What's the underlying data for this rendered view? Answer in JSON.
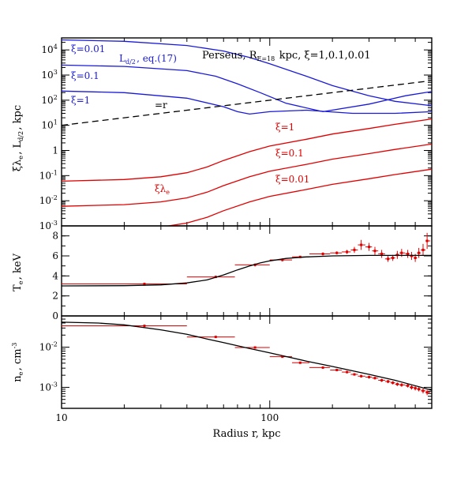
{
  "chart_data": [
    {
      "type": "line",
      "panel": "top",
      "title": "Perseus, R_E=18 kpc, ξ=1,0.1,0.01",
      "ylabel": "ξλ_e, L_d/2, kpc",
      "xscale": "log",
      "yscale": "log",
      "xlim": [
        10,
        600
      ],
      "ylim": [
        0.001,
        30000
      ],
      "ytick_labels": [
        "10^-3",
        "10^-2",
        "10^-1",
        "1",
        "10^1",
        "10^2",
        "10^3",
        "10^4"
      ],
      "series": [
        {
          "name": "ξ=0.01",
          "group": "L_d/2, eq.(17)",
          "color": "#1a1ad8",
          "x": [
            10,
            20,
            40,
            60,
            80,
            100,
            150,
            200,
            300,
            400,
            600
          ],
          "y": [
            25000,
            22000,
            15000,
            9000,
            5000,
            2800,
            900,
            380,
            150,
            90,
            60
          ]
        },
        {
          "name": "ξ=0.1",
          "group": "L_d/2, eq.(17)",
          "color": "#1a1ad8",
          "x": [
            10,
            20,
            40,
            55,
            70,
            90,
            120,
            180,
            300,
            450,
            600
          ],
          "y": [
            2500,
            2200,
            1500,
            900,
            450,
            200,
            75,
            35,
            70,
            150,
            220
          ]
        },
        {
          "name": "ξ=1",
          "group": "L_d/2, eq.(17)",
          "color": "#1a1ad8",
          "x": [
            10,
            20,
            40,
            60,
            70,
            80,
            100,
            150,
            250,
            400,
            600
          ],
          "y": [
            230,
            200,
            120,
            55,
            35,
            28,
            35,
            40,
            30,
            30,
            35
          ]
        },
        {
          "name": "=r",
          "color": "#000000",
          "dashed": true,
          "x": [
            10,
            600
          ],
          "y": [
            10,
            600
          ]
        },
        {
          "name": "ξ=1",
          "group": "ξλ_e",
          "color": "#e00000",
          "x": [
            10,
            20,
            30,
            40,
            50,
            60,
            80,
            100,
            150,
            200,
            300,
            400,
            600
          ],
          "y": [
            0.06,
            0.07,
            0.09,
            0.13,
            0.22,
            0.4,
            0.9,
            1.5,
            2.8,
            4.5,
            7.5,
            11,
            18
          ]
        },
        {
          "name": "ξ=0.1",
          "group": "ξλ_e",
          "color": "#e00000",
          "x": [
            10,
            20,
            30,
            40,
            50,
            60,
            80,
            100,
            150,
            200,
            300,
            400,
            600
          ],
          "y": [
            0.006,
            0.007,
            0.009,
            0.013,
            0.022,
            0.04,
            0.09,
            0.15,
            0.28,
            0.45,
            0.75,
            1.1,
            1.8
          ]
        },
        {
          "name": "ξ=0.01",
          "group": "ξλ_e",
          "color": "#e00000",
          "x": [
            10,
            20,
            30,
            40,
            50,
            60,
            80,
            100,
            150,
            200,
            300,
            400,
            600
          ],
          "y": [
            0.0006,
            0.0007,
            0.0009,
            0.0013,
            0.0022,
            0.004,
            0.009,
            0.015,
            0.028,
            0.045,
            0.075,
            0.11,
            0.18
          ]
        }
      ],
      "annotations": [
        "ξ=0.01",
        "ξ=0.1",
        "ξ=1",
        "L_d/2, eq.(17)",
        "=r",
        "ξ=1",
        "ξ=0.1",
        "ξ=0.01",
        "ξλ_e"
      ]
    },
    {
      "type": "scatter",
      "panel": "middle",
      "ylabel": "T_e, keV",
      "xscale": "log",
      "xlim": [
        10,
        600
      ],
      "ylim": [
        0,
        9
      ],
      "ytick_labels": [
        "0",
        "2",
        "4",
        "6",
        "8"
      ],
      "model": {
        "x": [
          10,
          20,
          30,
          40,
          50,
          60,
          70,
          80,
          90,
          100,
          120,
          150,
          200,
          300,
          400,
          600
        ],
        "y": [
          3.0,
          3.02,
          3.1,
          3.3,
          3.6,
          4.1,
          4.6,
          5.0,
          5.3,
          5.5,
          5.75,
          5.9,
          6.0,
          6.05,
          6.05,
          6.05
        ]
      },
      "data": {
        "x": [
          25,
          55,
          85,
          115,
          140,
          180,
          210,
          235,
          255,
          275,
          300,
          320,
          345,
          370,
          390,
          410,
          430,
          460,
          480,
          500,
          520,
          545,
          570
        ],
        "y": [
          3.2,
          3.9,
          5.1,
          5.6,
          5.9,
          6.2,
          6.3,
          6.4,
          6.6,
          7.1,
          6.9,
          6.5,
          6.2,
          5.7,
          5.8,
          6.1,
          6.3,
          6.2,
          6.0,
          5.8,
          6.3,
          6.6,
          7.5
        ],
        "x_lo": [
          10,
          40,
          68,
          100,
          128,
          155,
          195,
          222,
          245,
          265,
          288,
          310,
          332,
          358,
          380,
          400,
          420,
          448,
          470,
          492,
          510,
          532,
          560
        ],
        "x_hi": [
          40,
          68,
          100,
          128,
          155,
          195,
          222,
          245,
          265,
          288,
          310,
          332,
          358,
          380,
          400,
          420,
          448,
          470,
          492,
          510,
          532,
          560,
          590
        ],
        "y_err": [
          0.1,
          0.1,
          0.15,
          0.15,
          0.1,
          0.15,
          0.15,
          0.2,
          0.3,
          0.5,
          0.4,
          0.4,
          0.4,
          0.3,
          0.3,
          0.4,
          0.4,
          0.4,
          0.4,
          0.4,
          0.5,
          0.6,
          0.8
        ]
      }
    },
    {
      "type": "scatter",
      "panel": "bottom",
      "xlabel": "Radius r, kpc",
      "ylabel": "n_e, cm^-3",
      "xscale": "log",
      "yscale": "log",
      "xlim": [
        10,
        600
      ],
      "ylim": [
        0.0003,
        0.06
      ],
      "xtick_labels": [
        "10",
        "100"
      ],
      "ytick_labels": [
        "10^-3",
        "10^-2"
      ],
      "model": {
        "x": [
          10,
          15,
          20,
          30,
          40,
          50,
          60,
          80,
          100,
          150,
          200,
          300,
          400,
          600
        ],
        "y": [
          0.042,
          0.04,
          0.036,
          0.027,
          0.021,
          0.016,
          0.013,
          0.0093,
          0.0072,
          0.0045,
          0.0033,
          0.0021,
          0.0015,
          0.00085
        ]
      },
      "data": {
        "x": [
          25,
          55,
          85,
          115,
          140,
          180,
          210,
          235,
          255,
          275,
          300,
          320,
          345,
          370,
          390,
          410,
          430,
          460,
          480,
          500,
          520,
          545,
          570
        ],
        "y": [
          0.034,
          0.018,
          0.0098,
          0.0058,
          0.0041,
          0.0031,
          0.0027,
          0.0024,
          0.0021,
          0.0019,
          0.0018,
          0.0017,
          0.0015,
          0.0014,
          0.0013,
          0.0012,
          0.00115,
          0.0011,
          0.001,
          0.00095,
          0.0009,
          0.00082,
          0.00075
        ],
        "x_lo": [
          10,
          40,
          68,
          100,
          128,
          155,
          195,
          222,
          245,
          265,
          288,
          310,
          332,
          358,
          380,
          400,
          420,
          448,
          470,
          492,
          510,
          532,
          560
        ],
        "x_hi": [
          40,
          68,
          100,
          128,
          155,
          195,
          222,
          245,
          265,
          288,
          310,
          332,
          358,
          380,
          400,
          420,
          448,
          470,
          492,
          510,
          532,
          560,
          590
        ],
        "y_err_frac": [
          0.05,
          0.05,
          0.06,
          0.06,
          0.05,
          0.06,
          0.06,
          0.07,
          0.07,
          0.08,
          0.08,
          0.08,
          0.09,
          0.09,
          0.09,
          0.1,
          0.1,
          0.1,
          0.12,
          0.12,
          0.12,
          0.14,
          0.15
        ]
      }
    }
  ]
}
